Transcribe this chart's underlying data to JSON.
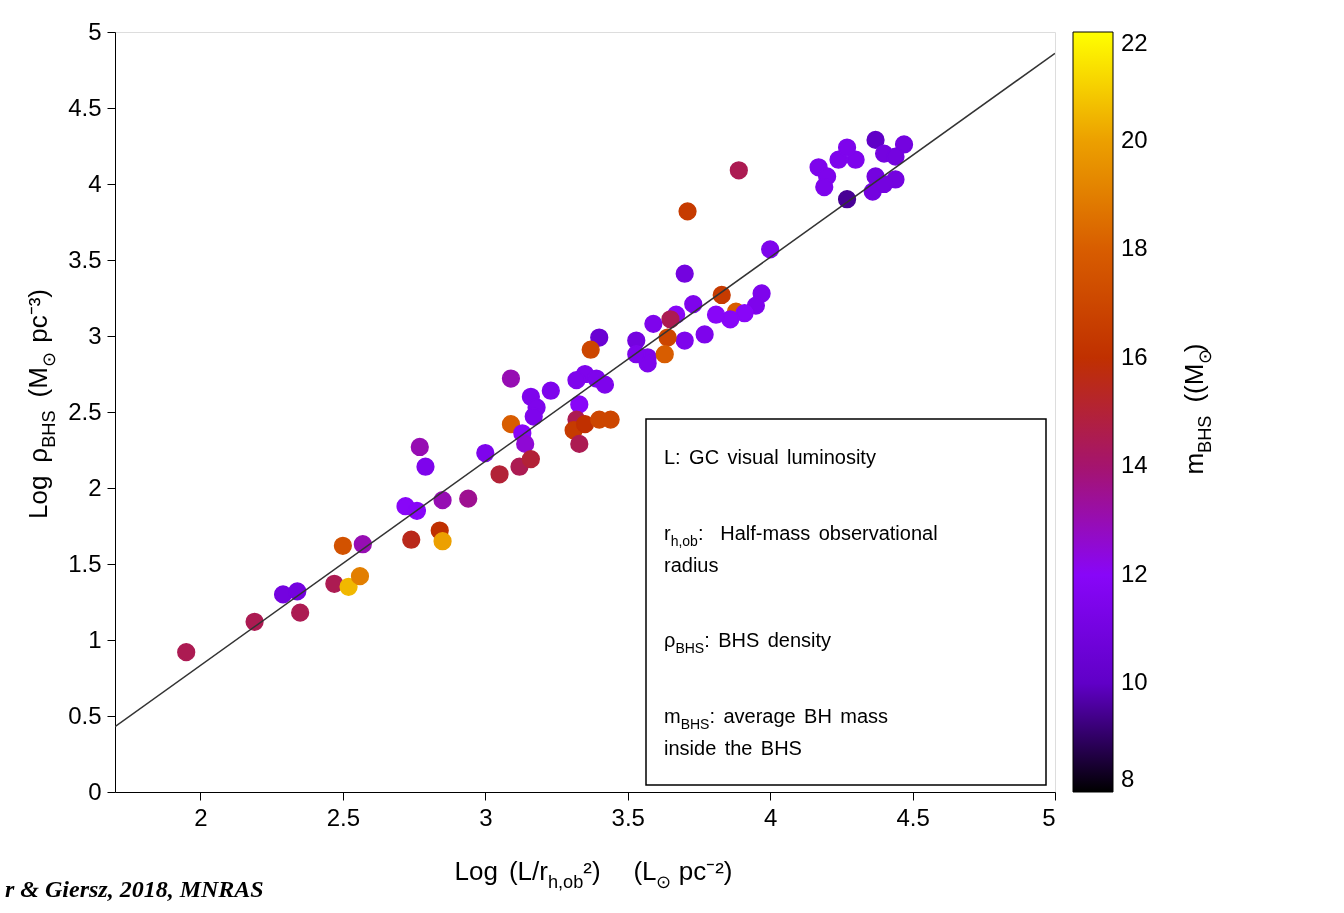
{
  "chart_data": {
    "type": "scatter",
    "xlabel": "Log (L/r$_{h,ob}$²)   (L$_{⊙}$ pc⁻²)",
    "ylabel": "Log ρ$_{BHS}$ (M$_{⊙}$ pc⁻³)",
    "clabel": "m$_{BHS}$ ((M$_{⊙}$)",
    "xlim": [
      1.7,
      5
    ],
    "ylim": [
      0,
      5
    ],
    "xticks": [
      2,
      2.5,
      3,
      3.5,
      4,
      4.5,
      5
    ],
    "yticks": [
      0,
      0.5,
      1,
      1.5,
      2,
      2.5,
      3,
      3.5,
      4,
      4.5,
      5
    ],
    "colors": [
      "#000000",
      "#6000c7",
      "#8806f8",
      "#a5146e",
      "#c03000",
      "#d85d00",
      "#eca000",
      "#ffff00"
    ],
    "clim": [
      8,
      22
    ],
    "cticks": [
      8,
      10,
      12,
      14,
      16,
      18,
      20,
      22
    ],
    "grid": false,
    "annotations": [
      "L: GC visual luminosity",
      "r$_{h,ob}$:  Half-mass observational radius",
      "ρ$_{BHS}$: BHS density",
      "m$_{BHS}$: average BH mass inside the BHS",
      "r & Giersz, 2018, MNRAS"
    ],
    "series": [
      {
        "type": "scatter",
        "marker": "circle",
        "colors": [
          "#ac1b52",
          "#ac1b52",
          "#7403df",
          "#7403df",
          "#ac1b52",
          "#ac1b52",
          "#f1b800",
          "#e27e00",
          "#d25200",
          "#960db3",
          "#8806f8",
          "#8806f8",
          "#960db3",
          "#9e1091",
          "#960db3",
          "#7e04ec",
          "#b9291b",
          "#c03000",
          "#eca000",
          "#7e04ec",
          "#b22237",
          "#960db3",
          "#7e04ec",
          "#7e04ec",
          "#7e04ec",
          "#7e04ec",
          "#d85d00",
          "#ac1b52",
          "#8806f8",
          "#8f09d5",
          "#b22237",
          "#6a02d3",
          "#cc4600",
          "#7e04ec",
          "#7e04ec",
          "#7e04ec",
          "#8806f8",
          "#ac1b52",
          "#c63b00",
          "#c03000",
          "#ac1b52",
          "#cc4600",
          "#cc4600",
          "#7403df",
          "#7e04ec",
          "#ac1b52",
          "#c63b00",
          "#7403df",
          "#7e04ec",
          "#c63b00",
          "#d85d00",
          "#7e04ec",
          "#7e04ec",
          "#8806f8",
          "#8806f8",
          "#8806f8",
          "#7e04ec",
          "#7e04ec",
          "#7e04ec",
          "#8806f8",
          "#ac1b52",
          "#cc4600",
          "#d85d00",
          "#7e04ec",
          "#7e04ec",
          "#7e04ec",
          "#7e04ec",
          "#7e04ec",
          "#7e04ec",
          "#7e04ec",
          "#480095",
          "#7e04ec",
          "#7e04ec",
          "#7e04ec",
          "#6000c7",
          "#7403df",
          "#7403df",
          "#7403df",
          "#7403df",
          "#7403df",
          "#7403df",
          "#7403df"
        ],
        "x": [
          1.95,
          2.19,
          2.29,
          2.34,
          2.35,
          2.47,
          2.52,
          2.56,
          2.5,
          2.57,
          2.72,
          2.76,
          2.85,
          2.94,
          2.77,
          2.79,
          2.74,
          2.84,
          2.85,
          3.0,
          3.05,
          3.09,
          3.16,
          3.23,
          3.18,
          3.17,
          3.09,
          3.12,
          3.13,
          3.14,
          3.16,
          3.4,
          3.37,
          3.35,
          3.39,
          3.32,
          3.33,
          3.32,
          3.31,
          3.35,
          3.33,
          3.4,
          3.44,
          3.53,
          3.57,
          3.89,
          3.71,
          3.7,
          4.0,
          3.83,
          3.88,
          3.97,
          3.95,
          3.91,
          3.86,
          3.81,
          3.77,
          3.73,
          3.7,
          3.67,
          3.65,
          3.64,
          3.63,
          3.59,
          3.57,
          3.53,
          3.42,
          4.17,
          4.2,
          4.19,
          4.27,
          4.24,
          4.3,
          4.27,
          4.37,
          4.4,
          4.47,
          4.44,
          4.37,
          4.36,
          4.44,
          4.4
        ],
        "values": [
          0.92,
          1.12,
          1.3,
          1.32,
          1.18,
          1.37,
          1.35,
          1.42,
          1.62,
          1.63,
          1.88,
          1.85,
          1.92,
          1.93,
          2.27,
          2.14,
          1.66,
          1.72,
          1.65,
          2.23,
          2.09,
          2.72,
          2.6,
          2.64,
          2.53,
          2.47,
          2.42,
          2.14,
          2.36,
          2.29,
          2.19,
          2.99,
          2.91,
          2.75,
          2.72,
          2.71,
          2.55,
          2.45,
          2.38,
          2.42,
          2.29,
          2.45,
          2.45,
          2.97,
          2.86,
          4.09,
          3.82,
          3.41,
          3.57,
          3.27,
          3.16,
          3.28,
          3.2,
          3.15,
          3.11,
          3.14,
          3.01,
          3.21,
          2.97,
          3.14,
          3.11,
          2.99,
          2.88,
          3.08,
          2.82,
          2.88,
          2.68,
          4.11,
          4.05,
          3.98,
          3.9,
          4.16,
          4.16,
          4.24,
          4.29,
          4.2,
          4.26,
          4.18,
          4.05,
          3.95,
          4.03,
          4.0
        ],
        "cvalues": [
          14.5,
          14.5,
          11,
          11,
          14.5,
          14.5,
          20.5,
          19,
          17.5,
          13,
          12,
          12,
          13,
          13.5,
          13,
          11.5,
          15.5,
          16,
          20,
          11.5,
          15,
          13,
          11.5,
          11.5,
          11.5,
          11.5,
          18,
          14.5,
          12,
          12.5,
          15,
          10.5,
          17,
          11.5,
          11.5,
          11.5,
          12,
          14.5,
          16.5,
          16,
          14.5,
          17,
          17,
          11,
          11.5,
          14.5,
          16.5,
          11,
          11.5,
          16.5,
          18,
          11.5,
          11.5,
          12,
          12,
          12,
          11.5,
          11.5,
          11.5,
          12,
          14.5,
          17,
          18,
          11.5,
          11.5,
          11.5,
          11.5,
          11.5,
          11.5,
          11.5,
          9.5,
          11.5,
          11.5,
          11.5,
          10,
          11,
          11,
          11,
          11,
          11,
          11,
          11
        ]
      },
      {
        "type": "line",
        "color": "#333333",
        "x": [
          1.7,
          5
        ],
        "values": [
          0.43,
          4.86
        ]
      }
    ]
  }
}
